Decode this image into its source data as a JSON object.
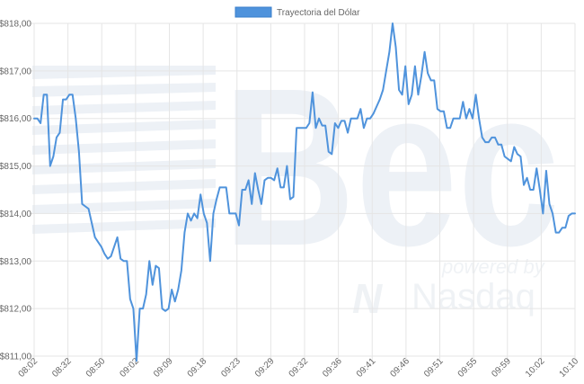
{
  "watermark": {
    "brand_text": "Bec",
    "powered_text": "powered by",
    "partner_mark": "N",
    "partner_text": "Nasdaq"
  },
  "chart_data": {
    "type": "line",
    "legend_position": "top-center",
    "grid": true,
    "series": [
      {
        "name": "Trayectoria del Dólar",
        "color": "#4f93dc",
        "values": [
          816.0,
          816.0,
          815.9,
          816.5,
          816.5,
          815.0,
          815.2,
          815.6,
          815.7,
          816.4,
          816.4,
          816.5,
          816.5,
          816.0,
          815.3,
          814.2,
          814.15,
          814.1,
          813.8,
          813.5,
          813.4,
          813.3,
          813.15,
          813.05,
          813.1,
          813.3,
          813.5,
          813.05,
          813.0,
          813.0,
          812.2,
          812.0,
          810.9,
          812.0,
          812.0,
          812.3,
          813.0,
          812.5,
          812.9,
          812.85,
          812.0,
          811.95,
          812.0,
          812.4,
          812.15,
          812.4,
          812.8,
          813.6,
          814.0,
          813.85,
          814.0,
          813.9,
          814.4,
          814.0,
          813.8,
          813.0,
          814.0,
          814.3,
          814.55,
          814.55,
          814.55,
          814.0,
          814.0,
          814.0,
          813.75,
          814.5,
          814.5,
          814.7,
          814.2,
          814.85,
          814.5,
          814.2,
          814.7,
          814.75,
          814.75,
          814.7,
          814.95,
          814.55,
          814.55,
          815.0,
          814.3,
          814.35,
          815.8,
          815.8,
          815.8,
          815.8,
          815.9,
          816.55,
          815.8,
          816.0,
          815.85,
          815.85,
          815.3,
          815.25,
          815.9,
          815.8,
          815.95,
          815.95,
          815.7,
          816.0,
          816.0,
          816.0,
          816.2,
          815.8,
          816.0,
          816.0,
          816.1,
          816.25,
          816.4,
          816.6,
          817.0,
          817.4,
          818.0,
          817.5,
          816.6,
          816.5,
          817.1,
          816.3,
          816.5,
          817.1,
          816.5,
          816.9,
          817.4,
          816.95,
          816.8,
          816.8,
          816.2,
          816.15,
          816.15,
          815.8,
          815.8,
          816.0,
          816.0,
          816.0,
          816.35,
          816.0,
          816.2,
          816.0,
          816.5,
          816.0,
          815.6,
          815.5,
          815.5,
          815.6,
          815.6,
          815.45,
          815.45,
          815.2,
          815.15,
          815.1,
          815.4,
          815.25,
          815.2,
          814.6,
          814.75,
          814.5,
          814.5,
          814.95,
          814.5,
          814.0,
          814.9,
          814.2,
          814.0,
          813.6,
          813.6,
          813.7,
          813.7,
          813.95,
          814.0,
          814.0
        ]
      }
    ],
    "x_labels": [
      "08:02",
      "08:32",
      "08:50",
      "09:02",
      "09:09",
      "09:18",
      "09:23",
      "09:29",
      "09:32",
      "09:36",
      "09:41",
      "09:46",
      "09:51",
      "09:55",
      "09:59",
      "10:02",
      "10:10"
    ],
    "ylim": [
      811,
      818
    ],
    "yticks": [
      811,
      812,
      813,
      814,
      815,
      816,
      817,
      818
    ],
    "ytick_labels": [
      "$811,00",
      "$812,00",
      "$813,00",
      "$814,00",
      "$815,00",
      "$816,00",
      "$817,00",
      "$818,00"
    ],
    "title": "",
    "xlabel": "",
    "ylabel": ""
  }
}
